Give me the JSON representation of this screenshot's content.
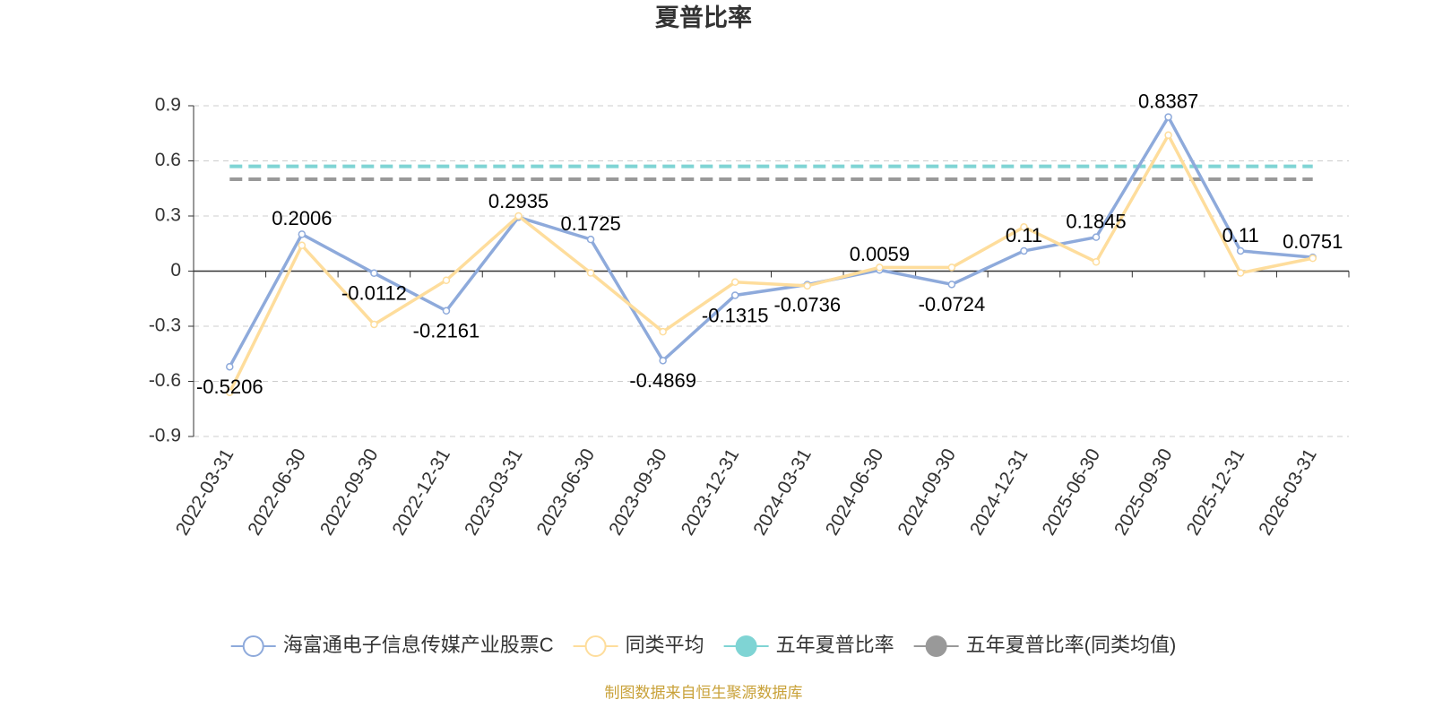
{
  "chart_data": {
    "type": "line",
    "title": "夏普比率",
    "categories": [
      "2022-03-31",
      "2022-06-30",
      "2022-09-30",
      "2022-12-31",
      "2023-03-31",
      "2023-06-30",
      "2023-09-30",
      "2023-12-31",
      "2024-03-31",
      "2024-06-30",
      "2024-09-30",
      "2024-12-31",
      "2025-06-30",
      "2025-09-30",
      "2025-12-31",
      "2026-03-31"
    ],
    "series": [
      {
        "name": "海富通电子信息传媒产业股票C",
        "color": "#8eaadb",
        "show_labels": true,
        "values": [
          -0.5206,
          0.2006,
          -0.0112,
          -0.2161,
          0.2935,
          0.1725,
          -0.4869,
          -0.1315,
          -0.0736,
          0.0059,
          -0.0724,
          0.11,
          0.1845,
          0.8387,
          0.11,
          0.0751
        ]
      },
      {
        "name": "同类平均",
        "color": "#fedd9c",
        "show_labels": false,
        "values": [
          -0.66,
          0.14,
          -0.29,
          -0.05,
          0.3,
          -0.01,
          -0.33,
          -0.06,
          -0.08,
          0.02,
          0.02,
          0.24,
          0.05,
          0.74,
          -0.01,
          0.07
        ]
      },
      {
        "name": "五年夏普比率",
        "color": "#7fd4d4",
        "value": 0.57
      },
      {
        "name": "五年夏普比率(同类均值)",
        "color": "#999999",
        "value": 0.5
      }
    ],
    "ylim": [
      -0.9,
      0.9
    ],
    "yticks": [
      -0.9,
      -0.6,
      -0.3,
      0,
      0.3,
      0.6,
      0.9
    ],
    "grid": true,
    "source": "制图数据来自恒生聚源数据库"
  }
}
